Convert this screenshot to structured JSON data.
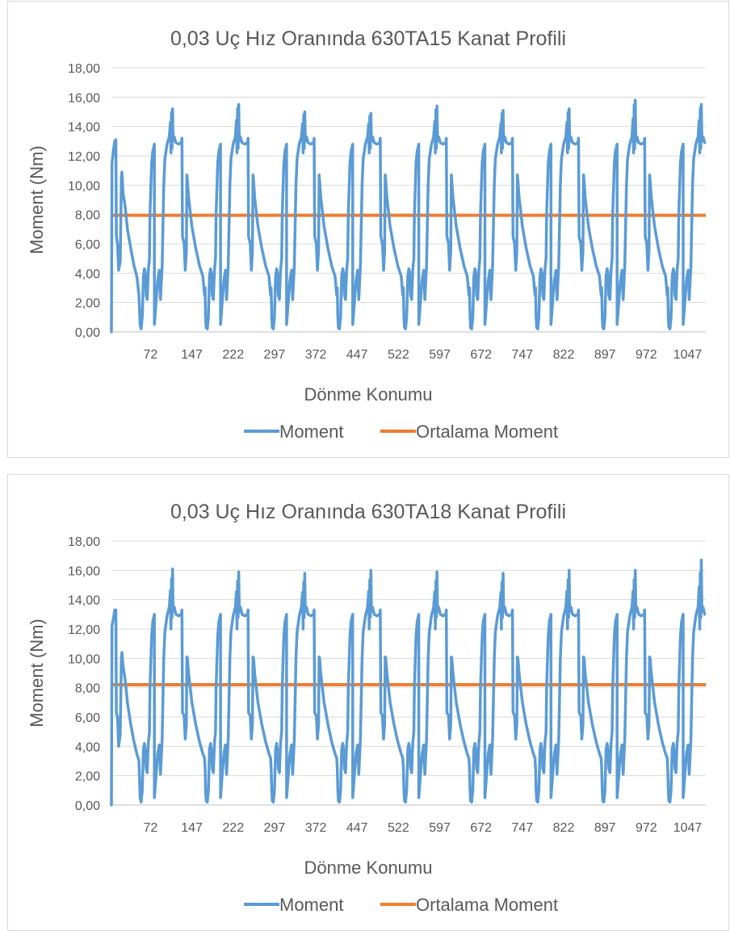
{
  "chart_data": [
    {
      "type": "line",
      "title": "0,03 Uç Hız Oranında 630TA15 Kanat Profili",
      "xlabel": "Dönme Konumu",
      "ylabel": "Moment (Nm)",
      "ylim": [
        0,
        18
      ],
      "y_ticks": [
        "0,00",
        "2,00",
        "4,00",
        "6,00",
        "8,00",
        "10,00",
        "12,00",
        "14,00",
        "16,00",
        "18,00"
      ],
      "x_ticks": [
        "72",
        "147",
        "222",
        "297",
        "372",
        "447",
        "522",
        "597",
        "672",
        "747",
        "822",
        "897",
        "972",
        "1047"
      ],
      "x_tick_values": [
        72,
        147,
        222,
        297,
        372,
        447,
        522,
        597,
        672,
        747,
        822,
        897,
        972,
        1047
      ],
      "xlim": [
        1,
        1080
      ],
      "grid": true,
      "legend_position": "bottom",
      "period": 120,
      "cycle_profile": [
        [
          0,
          0.5
        ],
        [
          6,
          3.5
        ],
        [
          9,
          4.2
        ],
        [
          11,
          2.2
        ],
        [
          14,
          4.5
        ],
        [
          17,
          10
        ],
        [
          19,
          11.8
        ],
        [
          23,
          12.8
        ],
        [
          27,
          13.3
        ],
        [
          29,
          14.2
        ],
        [
          30,
          12.2
        ],
        [
          31,
          14.8
        ],
        [
          32,
          12.5
        ],
        [
          33,
          15.0
        ],
        [
          34,
          13.0
        ],
        [
          36,
          13.3
        ],
        [
          39,
          12.9
        ],
        [
          44,
          12.8
        ],
        [
          49,
          12.9
        ],
        [
          50,
          13.2
        ],
        [
          51,
          6.5
        ],
        [
          54,
          6.0
        ],
        [
          56,
          4.2
        ],
        [
          58,
          5.5
        ],
        [
          59,
          10.7
        ],
        [
          60,
          10.3
        ],
        [
          62,
          9.2
        ],
        [
          68,
          7.2
        ],
        [
          75,
          5.7
        ],
        [
          82,
          4.5
        ],
        [
          88,
          3.8
        ],
        [
          91,
          2.5
        ],
        [
          92,
          3.0
        ],
        [
          93,
          1.0
        ],
        [
          94,
          0.3
        ],
        [
          96,
          0.2
        ],
        [
          98,
          1.0
        ],
        [
          100,
          3.8
        ],
        [
          102,
          4.3
        ],
        [
          104,
          3.9
        ],
        [
          105,
          2.5
        ],
        [
          107,
          2.2
        ],
        [
          109,
          4.2
        ],
        [
          111,
          5.0
        ],
        [
          112,
          8.0
        ],
        [
          115,
          11.5
        ],
        [
          117,
          12.3
        ],
        [
          120,
          12.8
        ]
      ],
      "start_profile": [
        [
          1,
          0
        ],
        [
          2,
          11.5
        ],
        [
          5,
          12.5
        ],
        [
          7,
          13.0
        ],
        [
          9,
          13.1
        ],
        [
          10,
          6.5
        ],
        [
          12,
          6.0
        ],
        [
          14,
          4.2
        ],
        [
          17,
          4.8
        ],
        [
          19,
          10.5
        ],
        [
          20,
          10.9
        ],
        [
          22,
          9.5
        ],
        [
          26,
          8.5
        ],
        [
          30,
          7.0
        ],
        [
          36,
          5.7
        ],
        [
          42,
          4.5
        ],
        [
          47,
          3.8
        ],
        [
          51,
          2.5
        ],
        [
          53,
          0.5
        ],
        [
          55,
          0.2
        ],
        [
          57,
          1.0
        ],
        [
          59,
          3.8
        ],
        [
          61,
          4.3
        ],
        [
          63,
          3.9
        ],
        [
          64,
          2.5
        ],
        [
          66,
          2.2
        ],
        [
          68,
          4.2
        ],
        [
          70,
          5.0
        ],
        [
          71,
          8.0
        ],
        [
          74,
          11.5
        ],
        [
          76,
          12.3
        ],
        [
          79,
          12.8
        ]
      ],
      "series": [
        {
          "name": "Moment",
          "color": "#5b9bd5",
          "cycle_peaks": [
            15.2,
            15.5,
            15.0,
            14.9,
            15.4,
            15.1,
            15.2,
            15.8,
            15.5
          ]
        },
        {
          "name": "Ortalama Moment",
          "color": "#ed7d31",
          "constant": 7.95
        }
      ]
    },
    {
      "type": "line",
      "title": "0,03 Uç Hız Oranında 630TA18 Kanat Profili",
      "xlabel": "Dönme Konumu",
      "ylabel": "Moment (Nm)",
      "ylim": [
        0,
        18
      ],
      "y_ticks": [
        "0,00",
        "2,00",
        "4,00",
        "6,00",
        "8,00",
        "10,00",
        "12,00",
        "14,00",
        "16,00",
        "18,00"
      ],
      "x_ticks": [
        "72",
        "147",
        "222",
        "297",
        "372",
        "447",
        "522",
        "597",
        "672",
        "747",
        "822",
        "897",
        "972",
        "1047"
      ],
      "x_tick_values": [
        72,
        147,
        222,
        297,
        372,
        447,
        522,
        597,
        672,
        747,
        822,
        897,
        972,
        1047
      ],
      "xlim": [
        1,
        1080
      ],
      "grid": true,
      "legend_position": "bottom",
      "period": 120,
      "cycle_profile": [
        [
          0,
          0.5
        ],
        [
          6,
          3.5
        ],
        [
          9,
          4.1
        ],
        [
          11,
          2.1
        ],
        [
          14,
          4.5
        ],
        [
          17,
          10
        ],
        [
          19,
          11.8
        ],
        [
          23,
          12.9
        ],
        [
          27,
          13.5
        ],
        [
          29,
          14.5
        ],
        [
          30,
          12.0
        ],
        [
          31,
          15.2
        ],
        [
          32,
          12.8
        ],
        [
          33,
          15.8
        ],
        [
          34,
          13.2
        ],
        [
          36,
          13.5
        ],
        [
          39,
          13.0
        ],
        [
          44,
          12.9
        ],
        [
          49,
          13.0
        ],
        [
          50,
          13.3
        ],
        [
          51,
          6.3
        ],
        [
          54,
          6.1
        ],
        [
          56,
          4.5
        ],
        [
          58,
          5.5
        ],
        [
          59,
          10.1
        ],
        [
          60,
          10.0
        ],
        [
          62,
          9.0
        ],
        [
          68,
          7.0
        ],
        [
          75,
          5.5
        ],
        [
          82,
          4.3
        ],
        [
          88,
          3.5
        ],
        [
          91,
          3.2
        ],
        [
          92,
          2.5
        ],
        [
          93,
          1.0
        ],
        [
          94,
          0.3
        ],
        [
          96,
          0.2
        ],
        [
          98,
          1.0
        ],
        [
          100,
          3.8
        ],
        [
          102,
          4.2
        ],
        [
          104,
          3.6
        ],
        [
          105,
          2.5
        ],
        [
          107,
          2.2
        ],
        [
          109,
          4.2
        ],
        [
          111,
          5.0
        ],
        [
          112,
          8.0
        ],
        [
          115,
          11.5
        ],
        [
          117,
          12.5
        ],
        [
          120,
          13.0
        ]
      ],
      "start_profile": [
        [
          1,
          0
        ],
        [
          2,
          12.2
        ],
        [
          5,
          12.8
        ],
        [
          7,
          13.3
        ],
        [
          9,
          13.3
        ],
        [
          10,
          6.3
        ],
        [
          12,
          6.0
        ],
        [
          14,
          4.0
        ],
        [
          17,
          4.8
        ],
        [
          19,
          10.0
        ],
        [
          20,
          10.4
        ],
        [
          22,
          9.5
        ],
        [
          26,
          8.5
        ],
        [
          30,
          7.0
        ],
        [
          36,
          5.5
        ],
        [
          42,
          4.3
        ],
        [
          47,
          3.5
        ],
        [
          51,
          3.0
        ],
        [
          53,
          0.5
        ],
        [
          55,
          0.2
        ],
        [
          57,
          1.0
        ],
        [
          59,
          3.8
        ],
        [
          61,
          4.2
        ],
        [
          63,
          3.6
        ],
        [
          64,
          2.5
        ],
        [
          66,
          2.2
        ],
        [
          68,
          4.2
        ],
        [
          70,
          5.0
        ],
        [
          71,
          8.0
        ],
        [
          74,
          11.5
        ],
        [
          76,
          12.5
        ],
        [
          79,
          13.0
        ]
      ],
      "series": [
        {
          "name": "Moment",
          "color": "#5b9bd5",
          "cycle_peaks": [
            16.1,
            15.9,
            15.8,
            16.0,
            15.9,
            15.8,
            16.0,
            16.0,
            16.7
          ]
        },
        {
          "name": "Ortalama Moment",
          "color": "#ed7d31",
          "constant": 8.2
        }
      ]
    }
  ]
}
